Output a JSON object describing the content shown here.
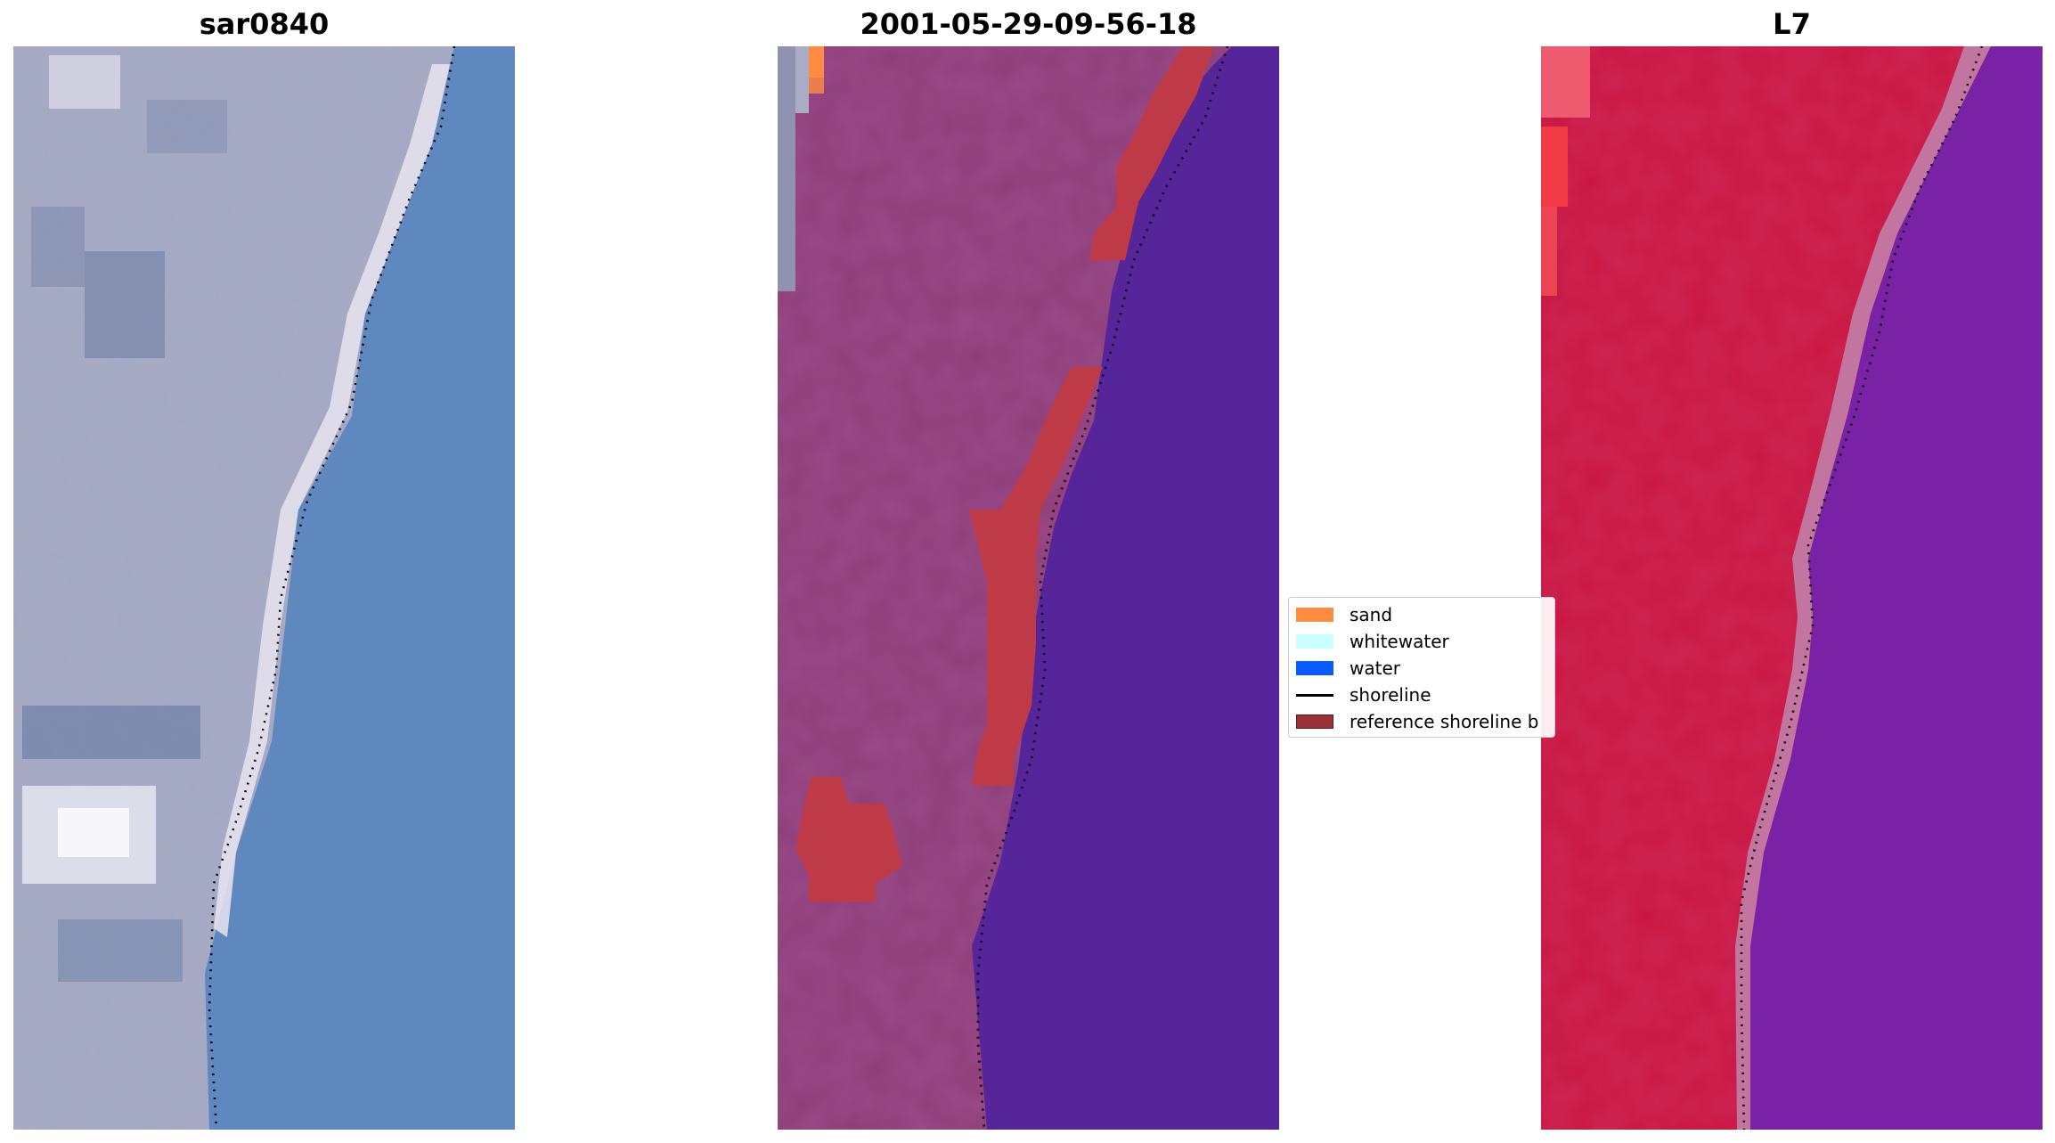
{
  "panels": [
    {
      "title": "sar0840"
    },
    {
      "title": "2001-05-29-09-56-18"
    },
    {
      "title": "L7"
    }
  ],
  "legend": {
    "items": [
      {
        "label": "sand",
        "color": "#ff8c40",
        "kind": "patch"
      },
      {
        "label": "whitewater",
        "color": "#c8ffff",
        "kind": "patch"
      },
      {
        "label": "water",
        "color": "#0a5cff",
        "kind": "patch"
      },
      {
        "label": "shoreline",
        "color": "#000000",
        "kind": "line"
      },
      {
        "label": "reference shoreline b",
        "color": "#9c3038",
        "kind": "patch"
      }
    ]
  },
  "colors": {
    "rgb_land": "#a7aac2",
    "rgb_water": "#5e86bd",
    "rgb_beach": "#e6e4ee",
    "classified_land": "#8e3d78",
    "classified_water": "#56259a",
    "classified_buffer": "#bd3a46",
    "ndwi_land": "#c8163f",
    "ndwi_water": "#7a22a6",
    "shoreline_dots": "#000000"
  }
}
